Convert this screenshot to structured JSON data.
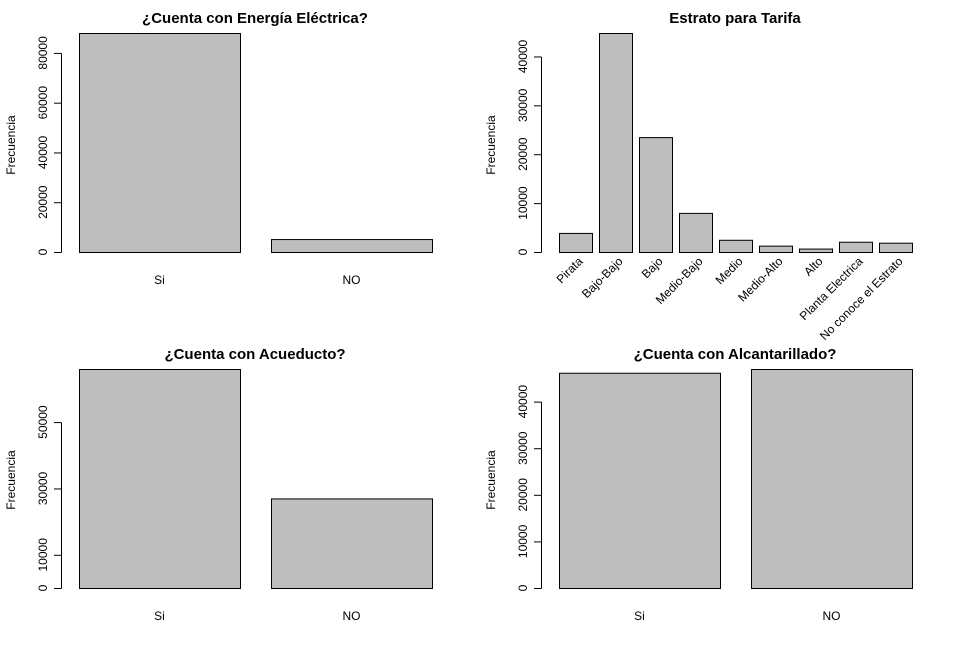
{
  "colors": {
    "bar_fill": "#bebebe",
    "bar_stroke": "#000000",
    "axis": "#000000",
    "background": "#ffffff"
  },
  "chart_data": [
    {
      "type": "bar",
      "title": "¿Cuenta con Energía Eléctrica?",
      "xlabel": "",
      "ylabel": "Frecuencia",
      "categories": [
        "Si",
        "NO"
      ],
      "values": [
        88000,
        5200
      ],
      "ylim": [
        0,
        88000
      ],
      "yticks": [
        0,
        20000,
        40000,
        60000,
        80000
      ],
      "category_label_angle": 0,
      "grid": false
    },
    {
      "type": "bar",
      "title": "Estrato para Tarifa",
      "xlabel": "",
      "ylabel": "Frecuencia",
      "categories": [
        "Pirata",
        "Bajo-Bajo",
        "Bajo",
        "Medio-Bajo",
        "Medio",
        "Medio-Alto",
        "Alto",
        "Planta Electrica",
        "No conoce el Estrato"
      ],
      "values": [
        3900,
        44800,
        23500,
        8000,
        2500,
        1300,
        700,
        2100,
        1900
      ],
      "ylim": [
        0,
        44800
      ],
      "yticks": [
        0,
        10000,
        20000,
        30000,
        40000
      ],
      "category_label_angle": -45,
      "grid": false
    },
    {
      "type": "bar",
      "title": "¿Cuenta con Acueducto?",
      "xlabel": "",
      "ylabel": "Frecuencia",
      "categories": [
        "Si",
        "NO"
      ],
      "values": [
        66000,
        27000
      ],
      "ylim": [
        0,
        66000
      ],
      "yticks": [
        0,
        10000,
        30000,
        50000
      ],
      "category_label_angle": 0,
      "grid": false
    },
    {
      "type": "bar",
      "title": "¿Cuenta con Alcantarillado?",
      "xlabel": "",
      "ylabel": "Frecuencia",
      "categories": [
        "Si",
        "NO"
      ],
      "values": [
        46200,
        47000
      ],
      "ylim": [
        0,
        47000
      ],
      "yticks": [
        0,
        10000,
        20000,
        30000,
        40000
      ],
      "category_label_angle": 0,
      "grid": false
    }
  ]
}
